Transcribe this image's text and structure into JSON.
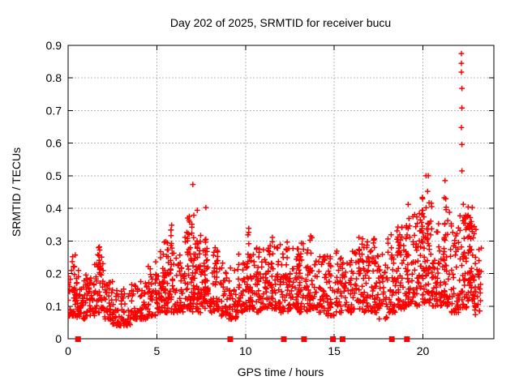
{
  "chart_data": {
    "type": "scatter",
    "title": "Day 202 of 2025, SRMTID for receiver bucu",
    "xlabel": "GPS time / hours",
    "ylabel": "SRMTID / TECUs",
    "xlim": [
      0,
      24
    ],
    "ylim": [
      0,
      0.9
    ],
    "xtick_labels": [
      "0",
      "5",
      "10",
      "15",
      "20"
    ],
    "ytick_labels": [
      "0",
      "0.1",
      "0.2",
      "0.3",
      "0.4",
      "0.5",
      "0.6",
      "0.7",
      "0.8",
      "0.9"
    ],
    "grid": true,
    "legend": false,
    "marker": "plus",
    "marker_color": "#ff0000",
    "background_color": "#ffffff",
    "axis_color": "#000000",
    "grid_color": "#b4b4b4",
    "seed": 20250202,
    "cloud_bins": [
      [
        0.0,
        0.5,
        0.07,
        0.22,
        42
      ],
      [
        0.5,
        1.0,
        0.06,
        0.24,
        42
      ],
      [
        1.0,
        1.5,
        0.07,
        0.2,
        38
      ],
      [
        1.5,
        2.0,
        0.08,
        0.26,
        38
      ],
      [
        2.0,
        2.5,
        0.06,
        0.18,
        34
      ],
      [
        2.5,
        3.0,
        0.04,
        0.15,
        32
      ],
      [
        3.0,
        3.5,
        0.04,
        0.16,
        32
      ],
      [
        3.5,
        4.0,
        0.06,
        0.17,
        32
      ],
      [
        4.0,
        4.5,
        0.06,
        0.19,
        34
      ],
      [
        4.5,
        5.0,
        0.07,
        0.24,
        38
      ],
      [
        5.0,
        5.5,
        0.08,
        0.28,
        38
      ],
      [
        5.5,
        6.0,
        0.08,
        0.3,
        38
      ],
      [
        6.0,
        6.5,
        0.08,
        0.26,
        38
      ],
      [
        6.5,
        7.0,
        0.09,
        0.32,
        38
      ],
      [
        7.0,
        7.5,
        0.08,
        0.34,
        42
      ],
      [
        7.5,
        8.0,
        0.09,
        0.32,
        38
      ],
      [
        8.0,
        8.5,
        0.08,
        0.28,
        34
      ],
      [
        8.5,
        9.0,
        0.07,
        0.24,
        32
      ],
      [
        9.0,
        9.5,
        0.06,
        0.22,
        32
      ],
      [
        9.5,
        10.0,
        0.08,
        0.26,
        34
      ],
      [
        10.0,
        10.5,
        0.09,
        0.3,
        38
      ],
      [
        10.5,
        11.0,
        0.08,
        0.28,
        38
      ],
      [
        11.0,
        11.5,
        0.09,
        0.28,
        38
      ],
      [
        11.5,
        12.0,
        0.09,
        0.3,
        38
      ],
      [
        12.0,
        12.5,
        0.08,
        0.28,
        38
      ],
      [
        12.5,
        13.0,
        0.09,
        0.28,
        38
      ],
      [
        13.0,
        13.5,
        0.08,
        0.3,
        38
      ],
      [
        13.5,
        14.0,
        0.09,
        0.28,
        38
      ],
      [
        14.0,
        14.5,
        0.08,
        0.26,
        36
      ],
      [
        14.5,
        15.0,
        0.07,
        0.28,
        36
      ],
      [
        15.0,
        15.5,
        0.08,
        0.28,
        36
      ],
      [
        15.5,
        16.0,
        0.08,
        0.24,
        34
      ],
      [
        16.0,
        16.5,
        0.09,
        0.28,
        36
      ],
      [
        16.5,
        17.0,
        0.08,
        0.3,
        36
      ],
      [
        17.0,
        17.5,
        0.08,
        0.31,
        36
      ],
      [
        17.5,
        18.0,
        0.06,
        0.27,
        34
      ],
      [
        18.0,
        18.5,
        0.08,
        0.32,
        38
      ],
      [
        18.5,
        19.0,
        0.09,
        0.35,
        38
      ],
      [
        19.0,
        19.5,
        0.1,
        0.38,
        40
      ],
      [
        19.5,
        20.0,
        0.1,
        0.4,
        42
      ],
      [
        20.0,
        20.5,
        0.11,
        0.42,
        44
      ],
      [
        20.5,
        21.0,
        0.1,
        0.36,
        40
      ],
      [
        21.0,
        21.5,
        0.1,
        0.4,
        40
      ],
      [
        21.5,
        22.0,
        0.08,
        0.36,
        38
      ],
      [
        22.0,
        22.5,
        0.09,
        0.38,
        38
      ],
      [
        22.5,
        23.0,
        0.1,
        0.42,
        44
      ],
      [
        22.9,
        23.3,
        0.07,
        0.3,
        26
      ]
    ],
    "streaks": [
      [
        0.3,
        0.12,
        0.26,
        8
      ],
      [
        1.7,
        0.1,
        0.3,
        12
      ],
      [
        5.45,
        0.1,
        0.33,
        12
      ],
      [
        5.8,
        0.12,
        0.39,
        10
      ],
      [
        6.8,
        0.12,
        0.42,
        12
      ],
      [
        7.05,
        0.1,
        0.48,
        16
      ],
      [
        7.35,
        0.12,
        0.4,
        10
      ],
      [
        7.8,
        0.1,
        0.43,
        12
      ],
      [
        8.3,
        0.1,
        0.3,
        8
      ],
      [
        10.2,
        0.12,
        0.35,
        12
      ],
      [
        11.5,
        0.1,
        0.35,
        10
      ],
      [
        12.3,
        0.1,
        0.31,
        8
      ],
      [
        13.0,
        0.12,
        0.3,
        8
      ],
      [
        13.7,
        0.18,
        0.33,
        6
      ],
      [
        16.5,
        0.15,
        0.33,
        6
      ],
      [
        17.2,
        0.1,
        0.35,
        10
      ],
      [
        18.6,
        0.1,
        0.4,
        12
      ],
      [
        19.15,
        0.12,
        0.42,
        12
      ],
      [
        19.9,
        0.14,
        0.45,
        14
      ],
      [
        20.25,
        0.15,
        0.5,
        16
      ],
      [
        21.3,
        0.12,
        0.47,
        12
      ],
      [
        22.35,
        0.12,
        0.42,
        12
      ],
      [
        22.7,
        0.14,
        0.42,
        14
      ]
    ],
    "outlier_points": [
      [
        22.17,
        0.875
      ],
      [
        22.17,
        0.845
      ],
      [
        22.17,
        0.818
      ],
      [
        22.2,
        0.768
      ],
      [
        22.2,
        0.708
      ],
      [
        22.17,
        0.648
      ],
      [
        22.2,
        0.596
      ],
      [
        22.2,
        0.515
      ],
      [
        20.3,
        0.5
      ],
      [
        21.25,
        0.485
      ]
    ],
    "zero_marker_hours": [
      0.56,
      9.14,
      12.16,
      13.3,
      14.93,
      15.47,
      18.25,
      19.1
    ]
  }
}
